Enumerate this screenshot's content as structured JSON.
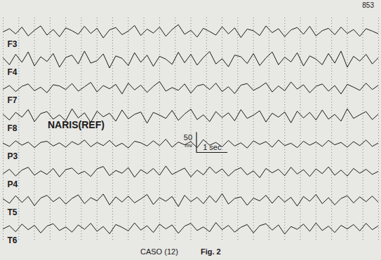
{
  "chart_data": {
    "type": "line",
    "tick_labels": false,
    "grid": true,
    "x": [
      0,
      0.2,
      0.4,
      0.6,
      0.8,
      1,
      1.2,
      1.4,
      1.6,
      1.8,
      2,
      2.2,
      2.4,
      2.6,
      2.8,
      3,
      3.2,
      3.4,
      3.6,
      3.8,
      4,
      4.2,
      4.4,
      4.6,
      4.8,
      5,
      5.2,
      5.4,
      5.6,
      5.8,
      6,
      6.2,
      6.4,
      6.6,
      6.8,
      7,
      7.2,
      7.4,
      7.6,
      7.8,
      8,
      8.2,
      8.4,
      8.6,
      8.8,
      9,
      9.2,
      9.4,
      9.6,
      9.8,
      10,
      10.2,
      10.4,
      10.6,
      10.8,
      11,
      11.2,
      11.4,
      11.6,
      11.8,
      12
    ],
    "xlim": [
      0,
      12
    ],
    "xticks": [
      0,
      0.5,
      1,
      1.5,
      2,
      2.5,
      3,
      3.5,
      4,
      4.5,
      5,
      5.5,
      6,
      6.5,
      7,
      7.5,
      8,
      8.5,
      9,
      9.5,
      10,
      10.5,
      11,
      11.5,
      12
    ],
    "ylim": [
      -35,
      35
    ],
    "series": [
      {
        "name": "F3",
        "color": "#1a1a1a",
        "values": [
          0,
          8,
          -5,
          12,
          -10,
          4,
          15,
          -8,
          6,
          -12,
          10,
          3,
          -6,
          14,
          -4,
          9,
          -15,
          5,
          11,
          -7,
          2,
          16,
          -9,
          7,
          -3,
          12,
          -11,
          6,
          18,
          -6,
          4,
          -13,
          9,
          1,
          -8,
          13,
          -5,
          10,
          -14,
          7,
          3,
          -9,
          15,
          -2,
          8,
          -12,
          5,
          11,
          -6,
          14,
          -10,
          3,
          9,
          -7,
          12,
          -4,
          6,
          -11,
          8,
          2,
          -5
        ]
      },
      {
        "name": "F4",
        "color": "#1a1a1a",
        "values": [
          5,
          -12,
          14,
          -6,
          20,
          -15,
          8,
          -4,
          16,
          -18,
          6,
          12,
          -10,
          22,
          -8,
          -2,
          15,
          -20,
          10,
          4,
          -14,
          18,
          -6,
          12,
          -16,
          9,
          2,
          -11,
          19,
          -7,
          14,
          -13,
          6,
          21,
          -10,
          3,
          -17,
          12,
          8,
          -9,
          16,
          -14,
          5,
          20,
          -12,
          7,
          -5,
          18,
          -15,
          10,
          2,
          -12,
          16,
          -8,
          22,
          -18,
          9,
          -3,
          14,
          -10,
          6
        ]
      },
      {
        "name": "F7",
        "color": "#1a1a1a",
        "values": [
          -3,
          6,
          -9,
          4,
          10,
          -7,
          2,
          -12,
          8,
          5,
          -4,
          11,
          -8,
          3,
          14,
          -10,
          6,
          -2,
          9,
          -15,
          12,
          -5,
          7,
          -11,
          4,
          16,
          -8,
          1,
          -6,
          10,
          -13,
          5,
          9,
          -4,
          12,
          -9,
          3,
          -14,
          7,
          11,
          -6,
          2,
          13,
          -10,
          5,
          -7,
          15,
          -3,
          8,
          -12,
          4,
          10,
          -8,
          6,
          -15,
          9,
          2,
          -6,
          12,
          -4,
          7
        ]
      },
      {
        "name": "F8",
        "color": "#1a1a1a",
        "values": [
          4,
          -10,
          9,
          -3,
          16,
          -14,
          6,
          11,
          -8,
          3,
          -12,
          18,
          -5,
          8,
          -16,
          12,
          -2,
          7,
          -13,
          15,
          -7,
          4,
          10,
          -18,
          9,
          2,
          -6,
          14,
          -11,
          5,
          17,
          -9,
          3,
          -14,
          11,
          -4,
          8,
          -12,
          16,
          -6,
          2,
          13,
          -15,
          7,
          -3,
          10,
          -17,
          12,
          -5,
          9,
          -10,
          15,
          -8,
          4,
          -13,
          18,
          -6,
          3,
          11,
          -9,
          5
        ]
      },
      {
        "name": "P3",
        "color": "#1a1a1a",
        "values": [
          2,
          -6,
          8,
          -3,
          5,
          -9,
          4,
          7,
          -5,
          3,
          -8,
          6,
          -2,
          10,
          -7,
          4,
          -4,
          9,
          -6,
          2,
          -10,
          7,
          3,
          -5,
          8,
          -4,
          12,
          -8,
          5,
          -2,
          6,
          -9,
          11,
          -3,
          4,
          -7,
          9,
          -5,
          3,
          -10,
          8,
          -1,
          6,
          -8,
          10,
          -4,
          2,
          -9,
          7,
          -3,
          5,
          -6,
          9,
          -2,
          4,
          -8,
          6,
          -4,
          10,
          -6,
          3
        ]
      },
      {
        "name": "P4",
        "color": "#1a1a1a",
        "values": [
          -4,
          7,
          -10,
          5,
          12,
          -8,
          3,
          -6,
          9,
          -12,
          6,
          10,
          -5,
          2,
          -11,
          8,
          14,
          -9,
          4,
          -3,
          11,
          -13,
          6,
          -4,
          9,
          -8,
          15,
          -6,
          2,
          10,
          -12,
          5,
          -7,
          13,
          -3,
          8,
          -10,
          4,
          11,
          -7,
          3,
          -14,
          9,
          -2,
          7,
          -9,
          12,
          -5,
          6,
          -11,
          8,
          -4,
          13,
          -8,
          5,
          -10,
          9,
          -3,
          7,
          -6,
          2
        ]
      },
      {
        "name": "T5",
        "color": "#1a1a1a",
        "values": [
          3,
          -8,
          11,
          -6,
          9,
          -14,
          5,
          12,
          -4,
          7,
          -10,
          4,
          13,
          -9,
          6,
          -2,
          15,
          -12,
          8,
          -5,
          10,
          -7,
          3,
          14,
          -11,
          6,
          -3,
          9,
          -16,
          12,
          -4,
          7,
          -9,
          11,
          -6,
          16,
          -10,
          4,
          8,
          -13,
          5,
          -2,
          12,
          -8,
          10,
          -5,
          7,
          -15,
          9,
          -3,
          14,
          -9,
          6,
          -12,
          4,
          11,
          -7,
          8,
          -4,
          10,
          -6
        ]
      },
      {
        "name": "T6",
        "color": "#1a1a1a",
        "values": [
          -2,
          6,
          -9,
          10,
          -4,
          7,
          -12,
          5,
          11,
          -6,
          3,
          -10,
          8,
          -3,
          12,
          -8,
          4,
          -14,
          9,
          2,
          -7,
          13,
          -5,
          6,
          -11,
          10,
          -2,
          8,
          -13,
          5,
          12,
          -6,
          3,
          -9,
          14,
          -4,
          7,
          -10,
          2,
          9,
          -12,
          6,
          11,
          -5,
          8,
          -15,
          4,
          -3,
          10,
          -8,
          13,
          -6,
          5,
          -11,
          7,
          -2,
          9,
          -7,
          12,
          -4,
          6
        ]
      }
    ],
    "scale_bar": {
      "amplitude": {
        "value": 50,
        "label": "50 mv"
      },
      "duration": {
        "value": 1,
        "label": "1 sec"
      }
    },
    "annotations": {
      "page_number": "853",
      "reference": "NARIS(REF)",
      "caption": "CASO (12)",
      "figure": "Fig. 2"
    }
  }
}
